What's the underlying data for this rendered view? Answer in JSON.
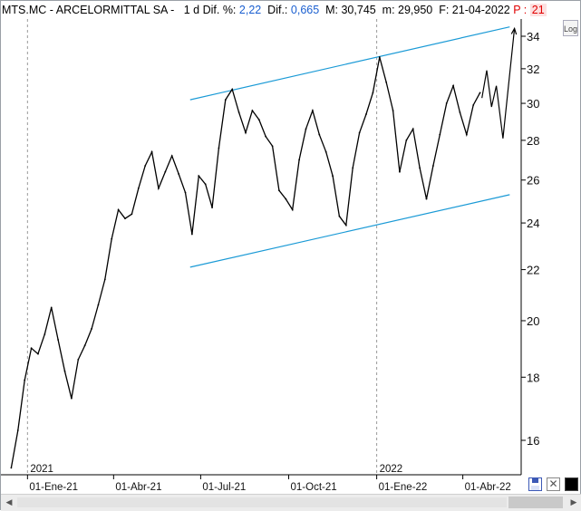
{
  "header": {
    "symbol": "MTS.MC",
    "sep1": " - ",
    "company": "ARCELORMITTAL SA",
    "sep2": " -   1 d ",
    "dif_pct_label": "Dif. %:",
    "dif_pct_value": "2,22",
    "dif_label": "  Dif.:",
    "dif_value": "0,665",
    "max_label": "  M: ",
    "max_value": "30,745",
    "min_label": "  m: ",
    "min_value": "29,950",
    "date_label": "  F: ",
    "date_value": "21-04-2022",
    "p_label": " P : ",
    "p_value": "21"
  },
  "log_button": "Log",
  "colors": {
    "channel": "#1a9ad6",
    "price": "#000000",
    "value_blue": "#1a5fd0",
    "p_red": "#e00000"
  },
  "chart_data": {
    "type": "line",
    "title": "MTS.MC - ARCELORMITTAL SA - 1 d",
    "y_scale": "log",
    "ylim": [
      14.8,
      36.2
    ],
    "y_ticks": [
      16,
      18,
      20,
      22,
      24,
      26,
      28,
      30,
      32,
      34
    ],
    "y_tick_labels": [
      "16",
      "18",
      "20",
      "22",
      "24",
      "26",
      "28",
      "30",
      "32",
      "34"
    ],
    "x_ticks": [
      "01-Ene-21",
      "01-Abr-21",
      "01-Jul-21",
      "01-Oct-21",
      "01-Ene-22",
      "01-Abr-22"
    ],
    "year_labels": [
      "2021",
      "2022"
    ],
    "series": [
      {
        "values": [
          {
            "x": "2020-12-15",
            "y": 15.2
          },
          {
            "x": "2020-12-22",
            "y": 16.3
          },
          {
            "x": "2020-12-29",
            "y": 17.9
          },
          {
            "x": "2021-01-05",
            "y": 19.0
          },
          {
            "x": "2021-01-12",
            "y": 18.8
          },
          {
            "x": "2021-01-19",
            "y": 19.5
          },
          {
            "x": "2021-01-26",
            "y": 20.5
          },
          {
            "x": "2021-02-02",
            "y": 19.3
          },
          {
            "x": "2021-02-09",
            "y": 18.2
          },
          {
            "x": "2021-02-16",
            "y": 17.3
          },
          {
            "x": "2021-02-23",
            "y": 18.6
          },
          {
            "x": "2021-03-02",
            "y": 19.1
          },
          {
            "x": "2021-03-09",
            "y": 19.7
          },
          {
            "x": "2021-03-16",
            "y": 20.6
          },
          {
            "x": "2021-03-23",
            "y": 21.6
          },
          {
            "x": "2021-03-30",
            "y": 23.3
          },
          {
            "x": "2021-04-06",
            "y": 24.6
          },
          {
            "x": "2021-04-13",
            "y": 24.2
          },
          {
            "x": "2021-04-20",
            "y": 24.4
          },
          {
            "x": "2021-04-27",
            "y": 25.6
          },
          {
            "x": "2021-05-04",
            "y": 26.7
          },
          {
            "x": "2021-05-11",
            "y": 27.4
          },
          {
            "x": "2021-05-18",
            "y": 25.6
          },
          {
            "x": "2021-05-25",
            "y": 26.4
          },
          {
            "x": "2021-06-01",
            "y": 27.2
          },
          {
            "x": "2021-06-08",
            "y": 26.3
          },
          {
            "x": "2021-06-15",
            "y": 25.4
          },
          {
            "x": "2021-06-22",
            "y": 23.5
          },
          {
            "x": "2021-06-29",
            "y": 26.2
          },
          {
            "x": "2021-07-06",
            "y": 25.8
          },
          {
            "x": "2021-07-13",
            "y": 24.7
          },
          {
            "x": "2021-07-20",
            "y": 27.6
          },
          {
            "x": "2021-07-27",
            "y": 30.2
          },
          {
            "x": "2021-08-03",
            "y": 30.8
          },
          {
            "x": "2021-08-10",
            "y": 29.5
          },
          {
            "x": "2021-08-17",
            "y": 28.4
          },
          {
            "x": "2021-08-24",
            "y": 29.6
          },
          {
            "x": "2021-08-31",
            "y": 29.1
          },
          {
            "x": "2021-09-07",
            "y": 28.2
          },
          {
            "x": "2021-09-14",
            "y": 27.7
          },
          {
            "x": "2021-09-21",
            "y": 25.5
          },
          {
            "x": "2021-09-28",
            "y": 25.1
          },
          {
            "x": "2021-10-05",
            "y": 24.6
          },
          {
            "x": "2021-10-12",
            "y": 27.0
          },
          {
            "x": "2021-10-19",
            "y": 28.6
          },
          {
            "x": "2021-10-26",
            "y": 29.6
          },
          {
            "x": "2021-11-02",
            "y": 28.3
          },
          {
            "x": "2021-11-09",
            "y": 27.4
          },
          {
            "x": "2021-11-16",
            "y": 26.2
          },
          {
            "x": "2021-11-23",
            "y": 24.3
          },
          {
            "x": "2021-11-30",
            "y": 23.9
          },
          {
            "x": "2021-12-07",
            "y": 26.6
          },
          {
            "x": "2021-12-14",
            "y": 28.4
          },
          {
            "x": "2021-12-21",
            "y": 29.4
          },
          {
            "x": "2021-12-28",
            "y": 30.6
          },
          {
            "x": "2022-01-04",
            "y": 32.7
          },
          {
            "x": "2022-01-11",
            "y": 31.2
          },
          {
            "x": "2022-01-18",
            "y": 29.6
          },
          {
            "x": "2022-01-25",
            "y": 26.4
          },
          {
            "x": "2022-02-01",
            "y": 28.0
          },
          {
            "x": "2022-02-08",
            "y": 28.6
          },
          {
            "x": "2022-02-15",
            "y": 26.6
          },
          {
            "x": "2022-02-22",
            "y": 25.1
          },
          {
            "x": "2022-03-01",
            "y": 26.7
          },
          {
            "x": "2022-03-08",
            "y": 28.3
          },
          {
            "x": "2022-03-15",
            "y": 30.0
          },
          {
            "x": "2022-03-22",
            "y": 31.0
          },
          {
            "x": "2022-03-29",
            "y": 29.5
          },
          {
            "x": "2022-04-05",
            "y": 28.3
          },
          {
            "x": "2022-04-12",
            "y": 29.9
          },
          {
            "x": "2022-04-19",
            "y": 30.6
          }
        ]
      },
      {
        "values": [
          {
            "x": "2022-04-21",
            "y": 30.3
          },
          {
            "x": "2022-04-26",
            "y": 31.9
          },
          {
            "x": "2022-05-01",
            "y": 29.8
          },
          {
            "x": "2022-05-06",
            "y": 31.0
          },
          {
            "x": "2022-05-13",
            "y": 28.1
          },
          {
            "x": "2022-05-25",
            "y": 34.5
          }
        ]
      }
    ],
    "channel_upper": [
      {
        "x": "2021-06-20",
        "y": 30.2
      },
      {
        "x": "2022-05-20",
        "y": 34.6
      }
    ],
    "channel_lower": [
      {
        "x": "2021-06-20",
        "y": 22.1
      },
      {
        "x": "2022-05-20",
        "y": 25.3
      }
    ],
    "grid": false
  },
  "toolbar": {
    "save_icon": "floppy-disk-icon",
    "close_icon": "close-icon",
    "color_icon": "color-swatch-icon"
  }
}
